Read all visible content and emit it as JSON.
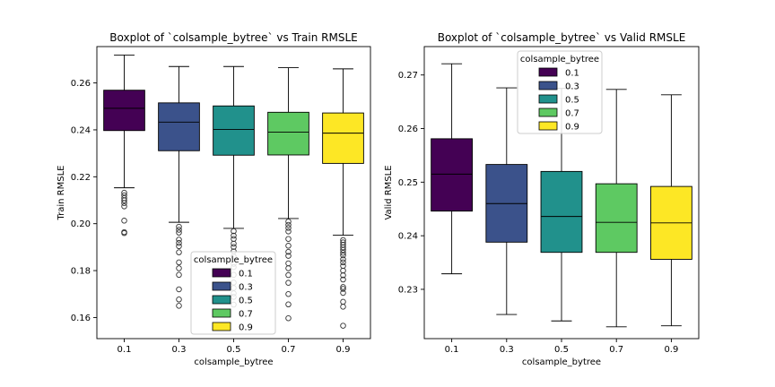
{
  "chart_data": [
    {
      "type": "box",
      "title": "Boxplot of `colsample_bytree` vs Train RMSLE",
      "xlabel": "colsample_bytree",
      "ylabel": "Train RMSLE",
      "categories": [
        "0.1",
        "0.3",
        "0.5",
        "0.7",
        "0.9"
      ],
      "colors": [
        "#440154",
        "#3b528b",
        "#21918c",
        "#5ec962",
        "#fde725"
      ],
      "ylim": [
        0.151,
        0.2755
      ],
      "yticks": [
        0.16,
        0.18,
        0.2,
        0.22,
        0.24,
        0.26
      ],
      "ytick_labels": [
        "0.16",
        "0.18",
        "0.20",
        "0.22",
        "0.24",
        "0.26"
      ],
      "boxes": [
        {
          "min": 0.2153,
          "q1": 0.2397,
          "median": 0.2492,
          "q3": 0.2569,
          "max": 0.2719,
          "outliers": [
            0.2132,
            0.2121,
            0.2109,
            0.2099,
            0.2088,
            0.2074,
            0.2013,
            0.1964,
            0.196
          ]
        },
        {
          "min": 0.2006,
          "q1": 0.2311,
          "median": 0.2433,
          "q3": 0.2515,
          "max": 0.267,
          "outliers": [
            0.1987,
            0.1974,
            0.1962,
            0.1932,
            0.1918,
            0.1904,
            0.1878,
            0.1835,
            0.181,
            0.1782,
            0.172,
            0.1677,
            0.165
          ]
        },
        {
          "min": 0.198,
          "q1": 0.2292,
          "median": 0.2402,
          "q3": 0.2502,
          "max": 0.267,
          "outliers": [
            0.1968,
            0.1949,
            0.1935,
            0.1915,
            0.1901,
            0.1882,
            0.186,
            0.1829,
            0.1815,
            0.1782,
            0.1749,
            0.1726,
            0.1703,
            0.1688,
            0.1655
          ]
        },
        {
          "min": 0.2022,
          "q1": 0.2293,
          "median": 0.239,
          "q3": 0.2475,
          "max": 0.2665,
          "outliers": [
            0.2009,
            0.1995,
            0.1982,
            0.1967,
            0.1935,
            0.1906,
            0.188,
            0.1863,
            0.1831,
            0.181,
            0.1781,
            0.1748,
            0.17,
            0.1656,
            0.1597
          ]
        },
        {
          "min": 0.1951,
          "q1": 0.2257,
          "median": 0.2386,
          "q3": 0.2472,
          "max": 0.266,
          "outliers": [
            0.193,
            0.192,
            0.191,
            0.1899,
            0.1888,
            0.1876,
            0.1865,
            0.1848,
            0.1835,
            0.182,
            0.18,
            0.178,
            0.1762,
            0.173,
            0.1722,
            0.1705,
            0.1667,
            0.1646,
            0.1565
          ]
        }
      ],
      "legend": {
        "title": "colsample_bytree",
        "labels": [
          "0.1",
          "0.3",
          "0.5",
          "0.7",
          "0.9"
        ],
        "loc": "lower-center"
      }
    },
    {
      "type": "box",
      "title": "Boxplot of `colsample_bytree` vs Valid RMSLE",
      "xlabel": "colsample_bytree",
      "ylabel": "Valid RMSLE",
      "categories": [
        "0.1",
        "0.3",
        "0.5",
        "0.7",
        "0.9"
      ],
      "colors": [
        "#440154",
        "#3b528b",
        "#21918c",
        "#5ec962",
        "#fde725"
      ],
      "ylim": [
        0.2208,
        0.2753
      ],
      "yticks": [
        0.23,
        0.24,
        0.25,
        0.26,
        0.27
      ],
      "ytick_labels": [
        "0.23",
        "0.24",
        "0.25",
        "0.26",
        "0.27"
      ],
      "boxes": [
        {
          "min": 0.2329,
          "q1": 0.2446,
          "median": 0.2515,
          "q3": 0.2581,
          "max": 0.2721,
          "outliers": []
        },
        {
          "min": 0.2253,
          "q1": 0.2388,
          "median": 0.246,
          "q3": 0.2533,
          "max": 0.2676,
          "outliers": []
        },
        {
          "min": 0.2241,
          "q1": 0.2369,
          "median": 0.2436,
          "q3": 0.252,
          "max": 0.2675,
          "outliers": []
        },
        {
          "min": 0.223,
          "q1": 0.2369,
          "median": 0.2425,
          "q3": 0.2497,
          "max": 0.2673,
          "outliers": []
        },
        {
          "min": 0.2232,
          "q1": 0.2356,
          "median": 0.2424,
          "q3": 0.2492,
          "max": 0.2663,
          "outliers": []
        }
      ],
      "legend": {
        "title": "colsample_bytree",
        "labels": [
          "0.1",
          "0.3",
          "0.5",
          "0.7",
          "0.9"
        ],
        "loc": "upper-center"
      }
    }
  ]
}
